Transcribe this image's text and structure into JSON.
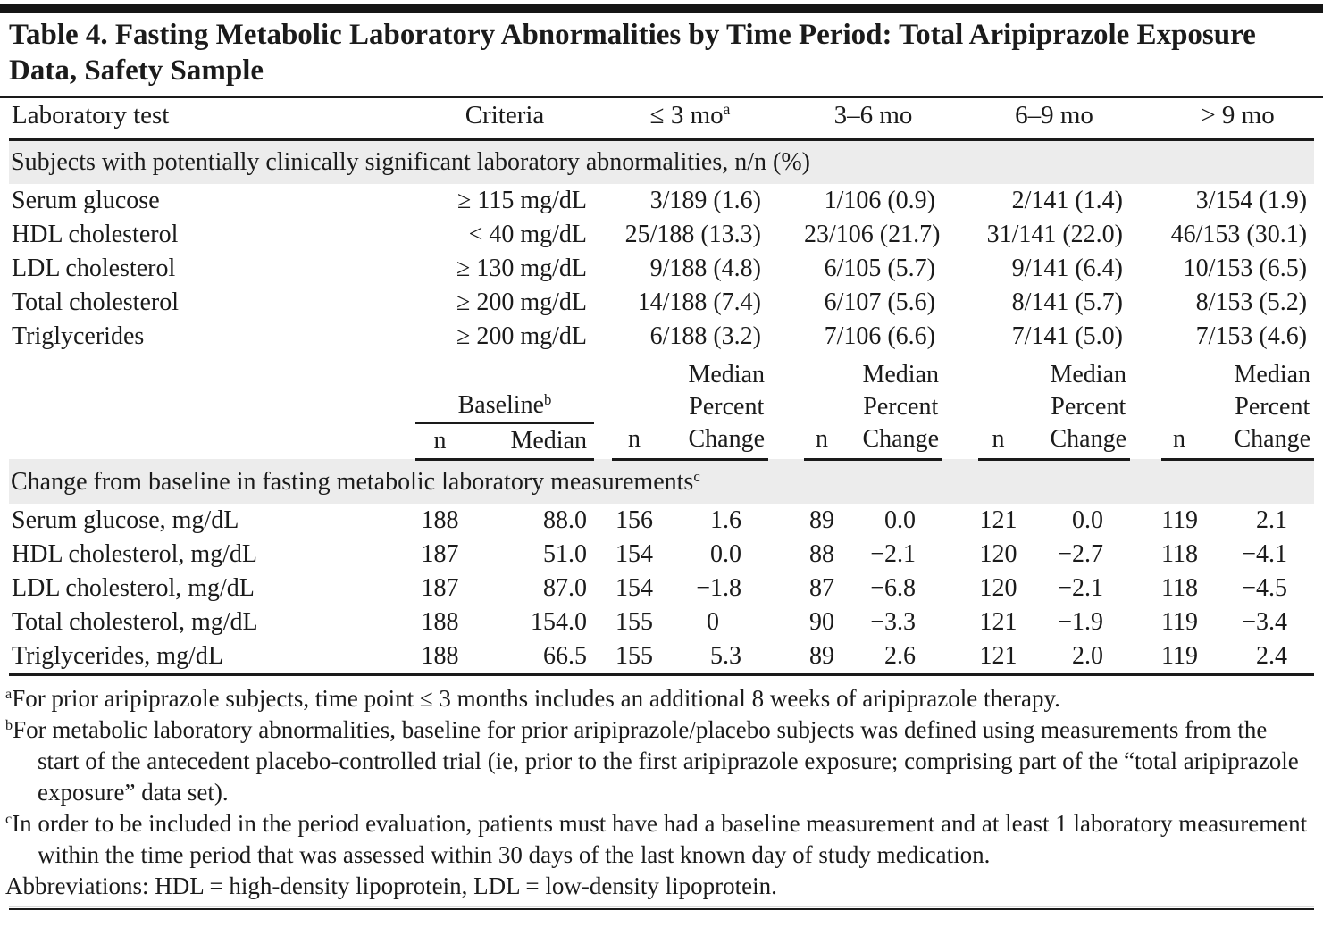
{
  "title": "Table 4. Fasting Metabolic Laboratory Abnormalities by Time Period: Total Aripiprazole Exposure Data, Safety Sample",
  "columns": {
    "lab_test": "Laboratory test",
    "criteria": "Criteria",
    "periods": [
      "≤ 3 mo",
      "3–6 mo",
      "6–9 mo",
      "> 9 mo"
    ],
    "period1_superscript": "a"
  },
  "section1": {
    "heading": "Subjects with potentially clinically significant laboratory abnormalities, n/n (%)",
    "rows": [
      {
        "test": "Serum glucose",
        "criteria": "≥ 115 mg/dL",
        "values": [
          "3/189 (1.6)",
          "1/106 (0.9)",
          "2/141 (1.4)",
          "3/154 (1.9)"
        ]
      },
      {
        "test": "HDL cholesterol",
        "criteria": "< 40 mg/dL",
        "values": [
          "25/188 (13.3)",
          "23/106 (21.7)",
          "31/141 (22.0)",
          "46/153 (30.1)"
        ]
      },
      {
        "test": "LDL cholesterol",
        "criteria": "≥ 130 mg/dL",
        "values": [
          "9/188 (4.8)",
          "6/105 (5.7)",
          "9/141 (6.4)",
          "10/153 (6.5)"
        ]
      },
      {
        "test": "Total cholesterol",
        "criteria": "≥ 200 mg/dL",
        "values": [
          "14/188 (7.4)",
          "6/107 (5.6)",
          "8/141 (5.7)",
          "8/153 (5.2)"
        ]
      },
      {
        "test": "Triglycerides",
        "criteria": "≥ 200 mg/dL",
        "values": [
          "6/188 (3.2)",
          "7/106 (6.6)",
          "7/141 (5.0)",
          "7/153 (4.6)"
        ]
      }
    ]
  },
  "mid_header": {
    "baseline_label": "Baseline",
    "baseline_superscript": "b",
    "n_label": "n",
    "median_label": "Median",
    "change_label_lines": [
      "Median",
      "Percent",
      "Change"
    ]
  },
  "section2": {
    "heading": "Change from baseline in fasting metabolic laboratory measurements",
    "heading_superscript": "c",
    "rows": [
      {
        "test": "Serum glucose, mg/dL",
        "baseline_n": "188",
        "baseline_median": "88.0",
        "periods": [
          {
            "n": "156",
            "change": "1.6"
          },
          {
            "n": "89",
            "change": "0.0"
          },
          {
            "n": "121",
            "change": "0.0"
          },
          {
            "n": "119",
            "change": "2.1"
          }
        ]
      },
      {
        "test": "HDL cholesterol, mg/dL",
        "baseline_n": "187",
        "baseline_median": "51.0",
        "periods": [
          {
            "n": "154",
            "change": "0.0"
          },
          {
            "n": "88",
            "change": "−2.1"
          },
          {
            "n": "120",
            "change": "−2.7"
          },
          {
            "n": "118",
            "change": "−4.1"
          }
        ]
      },
      {
        "test": "LDL cholesterol, mg/dL",
        "baseline_n": "187",
        "baseline_median": "87.0",
        "periods": [
          {
            "n": "154",
            "change": "−1.8"
          },
          {
            "n": "87",
            "change": "−6.8"
          },
          {
            "n": "120",
            "change": "−2.1"
          },
          {
            "n": "118",
            "change": "−4.5"
          }
        ]
      },
      {
        "test": "Total cholesterol, mg/dL",
        "baseline_n": "188",
        "baseline_median": "154.0",
        "periods": [
          {
            "n": "155",
            "change": "0"
          },
          {
            "n": "90",
            "change": "−3.3"
          },
          {
            "n": "121",
            "change": "−1.9"
          },
          {
            "n": "119",
            "change": "−3.4"
          }
        ]
      },
      {
        "test": "Triglycerides, mg/dL",
        "baseline_n": "188",
        "baseline_median": "66.5",
        "periods": [
          {
            "n": "155",
            "change": "5.3"
          },
          {
            "n": "89",
            "change": "2.6"
          },
          {
            "n": "121",
            "change": "2.0"
          },
          {
            "n": "119",
            "change": "2.4"
          }
        ]
      }
    ]
  },
  "footnotes": [
    {
      "marker": "a",
      "text": "For prior aripiprazole subjects, time point ≤ 3 months includes an additional 8 weeks of aripiprazole therapy."
    },
    {
      "marker": "b",
      "text": "For metabolic laboratory abnormalities, baseline for prior aripiprazole/placebo subjects was defined using measurements from the start of the antecedent placebo-controlled trial (ie, prior to the first aripiprazole exposure; comprising part of the “total aripiprazole exposure” data set)."
    },
    {
      "marker": "c",
      "text": "In order to be included in the period evaluation, patients must have had a baseline measurement and at least 1 laboratory measurement within the time period that was assessed within 30 days of the last known day of study medication."
    }
  ],
  "abbreviations": "Abbreviations: HDL = high-density lipoprotein, LDL = low-density lipoprotein.",
  "colors": {
    "band_bg": "#ececec",
    "rule": "#1a1a1a",
    "text": "#1b1b1b"
  }
}
